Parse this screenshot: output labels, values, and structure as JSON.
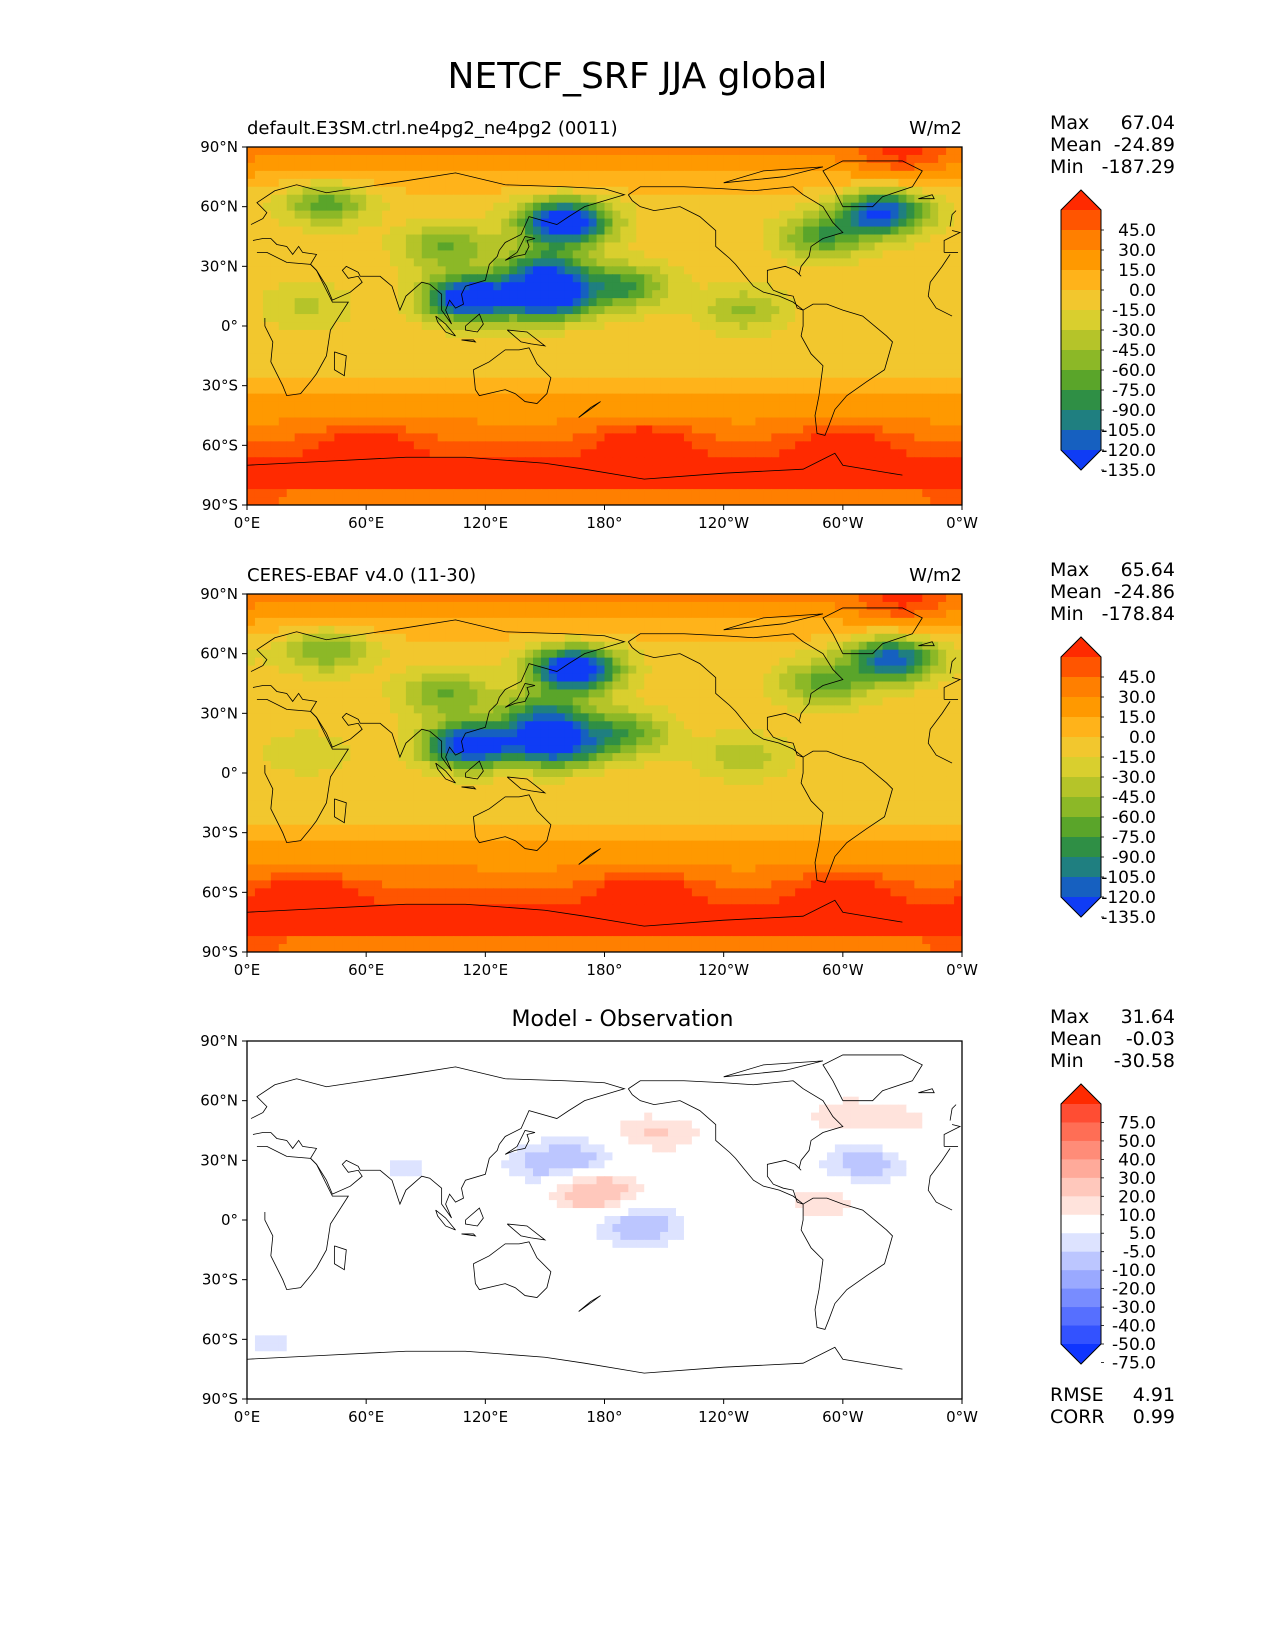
{
  "figure_title": "NETCF_SRF JJA global",
  "chart_data": [
    {
      "type": "contour-map",
      "title": "default.E3SM.ctrl.ne4pg2_ne4pg2 (0011)",
      "units": "W/m2",
      "stats": [
        {
          "label": "Max",
          "value": "67.04"
        },
        {
          "label": "Mean",
          "value": "-24.89"
        },
        {
          "label": "Min",
          "value": "-187.29"
        }
      ],
      "colorbar": {
        "levels": [
          "45.0",
          "30.0",
          "15.0",
          "0.0",
          "-15.0",
          "-30.0",
          "-45.0",
          "-60.0",
          "-75.0",
          "-90.0",
          "-105.0",
          "-120.0",
          "-135.0"
        ],
        "colors": [
          "#ff2a00",
          "#ff5500",
          "#ff7f00",
          "#ff9900",
          "#ffb31a",
          "#f2c72e",
          "#d9cf2e",
          "#b5c429",
          "#8cb827",
          "#5aa52a",
          "#2f8f45",
          "#1f7f80",
          "#1660c0",
          "#0f3cf5"
        ],
        "extend": "both"
      },
      "xaxis": {
        "ticks": [
          "0°E",
          "60°E",
          "120°E",
          "180°",
          "120°W",
          "60°W",
          "0°W"
        ]
      },
      "yaxis": {
        "ticks": [
          "90°N",
          "60°N",
          "30°N",
          "0°",
          "30°S",
          "60°S",
          "90°S"
        ]
      },
      "fields": [
        {
          "lon": 160,
          "lat": 52,
          "value": -150
        },
        {
          "lon": 112,
          "lat": 14,
          "value": -145
        },
        {
          "lon": 152,
          "lat": 14,
          "value": -130
        },
        {
          "lon": 320,
          "lat": 57,
          "value": -120
        },
        {
          "lon": 150,
          "lat": 28,
          "value": -90
        },
        {
          "lon": 190,
          "lat": 20,
          "value": -70
        },
        {
          "lon": 100,
          "lat": 40,
          "value": -55
        },
        {
          "lon": 40,
          "lat": 62,
          "value": -60
        },
        {
          "lon": 290,
          "lat": 45,
          "value": -65
        },
        {
          "lon": 250,
          "lat": 8,
          "value": -40
        },
        {
          "lon": 30,
          "lat": 10,
          "value": -25
        },
        {
          "lon": 80,
          "lat": -40,
          "value": 5
        },
        {
          "lon": 300,
          "lat": -62,
          "value": 45
        },
        {
          "lon": 60,
          "lat": -62,
          "value": 40
        },
        {
          "lon": 200,
          "lat": -60,
          "value": 42
        },
        {
          "lon": 330,
          "lat": 85,
          "value": 35
        },
        {
          "lon": 0,
          "lat": -85,
          "value": 20
        }
      ]
    },
    {
      "type": "contour-map",
      "title": "CERES-EBAF v4.0 (11-30)",
      "units": "W/m2",
      "stats": [
        {
          "label": "Max",
          "value": "65.64"
        },
        {
          "label": "Mean",
          "value": "-24.86"
        },
        {
          "label": "Min",
          "value": "-178.84"
        }
      ],
      "colorbar": {
        "levels": [
          "45.0",
          "30.0",
          "15.0",
          "0.0",
          "-15.0",
          "-30.0",
          "-45.0",
          "-60.0",
          "-75.0",
          "-90.0",
          "-105.0",
          "-120.0",
          "-135.0"
        ],
        "colors": [
          "#ff2a00",
          "#ff5500",
          "#ff7f00",
          "#ff9900",
          "#ffb31a",
          "#f2c72e",
          "#d9cf2e",
          "#b5c429",
          "#8cb827",
          "#5aa52a",
          "#2f8f45",
          "#1f7f80",
          "#1660c0",
          "#0f3cf5"
        ],
        "extend": "both"
      },
      "xaxis": {
        "ticks": [
          "0°E",
          "60°E",
          "120°E",
          "180°",
          "120°W",
          "60°W",
          "0°W"
        ]
      },
      "yaxis": {
        "ticks": [
          "90°N",
          "60°N",
          "30°N",
          "0°",
          "30°S",
          "60°S",
          "90°S"
        ]
      },
      "fields": [
        {
          "lon": 165,
          "lat": 52,
          "value": -145
        },
        {
          "lon": 112,
          "lat": 14,
          "value": -140
        },
        {
          "lon": 155,
          "lat": 14,
          "value": -125
        },
        {
          "lon": 325,
          "lat": 57,
          "value": -110
        },
        {
          "lon": 150,
          "lat": 28,
          "value": -85
        },
        {
          "lon": 190,
          "lat": 20,
          "value": -65
        },
        {
          "lon": 100,
          "lat": 40,
          "value": -55
        },
        {
          "lon": 40,
          "lat": 62,
          "value": -55
        },
        {
          "lon": 290,
          "lat": 45,
          "value": -60
        },
        {
          "lon": 250,
          "lat": 8,
          "value": -35
        },
        {
          "lon": 30,
          "lat": 10,
          "value": -20
        },
        {
          "lon": 80,
          "lat": -40,
          "value": 5
        },
        {
          "lon": 300,
          "lat": -62,
          "value": 45
        },
        {
          "lon": 30,
          "lat": -62,
          "value": 42
        },
        {
          "lon": 200,
          "lat": -60,
          "value": 40
        },
        {
          "lon": 330,
          "lat": 85,
          "value": 35
        },
        {
          "lon": 0,
          "lat": -85,
          "value": 20
        }
      ]
    },
    {
      "type": "contour-map",
      "title": "Model - Observation",
      "units": "",
      "stats": [
        {
          "label": "Max",
          "value": "31.64"
        },
        {
          "label": "Mean",
          "value": "-0.03"
        },
        {
          "label": "Min",
          "value": "-30.58"
        }
      ],
      "metrics": [
        {
          "label": "RMSE",
          "value": "4.91"
        },
        {
          "label": "CORR",
          "value": "0.99"
        }
      ],
      "colorbar": {
        "levels": [
          "75.0",
          "50.0",
          "40.0",
          "30.0",
          "20.0",
          "10.0",
          "5.0",
          "-5.0",
          "-10.0",
          "-20.0",
          "-30.0",
          "-40.0",
          "-50.0",
          "-75.0"
        ],
        "colors": [
          "#ff2a00",
          "#ff4d33",
          "#ff6e55",
          "#ff8c78",
          "#ffaa9a",
          "#ffc8bc",
          "#ffe3dc",
          "#ffffff",
          "#dde3ff",
          "#bcc6ff",
          "#9aa9ff",
          "#788cff",
          "#566fff",
          "#3352ff",
          "#0f35ff"
        ],
        "extend": "both"
      },
      "xaxis": {
        "ticks": [
          "0°E",
          "60°E",
          "120°E",
          "180°",
          "120°W",
          "60°W",
          "0°W"
        ]
      },
      "yaxis": {
        "ticks": [
          "90°N",
          "60°N",
          "30°N",
          "0°",
          "30°S",
          "60°S",
          "90°S"
        ]
      },
      "fields": [
        {
          "lon": 175,
          "lat": 15,
          "value": 20
        },
        {
          "lon": 207,
          "lat": 45,
          "value": 12
        },
        {
          "lon": 290,
          "lat": 10,
          "value": 8
        },
        {
          "lon": 300,
          "lat": 52,
          "value": 8
        },
        {
          "lon": 330,
          "lat": 50,
          "value": 6
        },
        {
          "lon": 150,
          "lat": 28,
          "value": -12
        },
        {
          "lon": 172,
          "lat": 30,
          "value": -10
        },
        {
          "lon": 80,
          "lat": 25,
          "value": -6
        },
        {
          "lon": 198,
          "lat": -3,
          "value": -15
        },
        {
          "lon": 310,
          "lat": 28,
          "value": -14
        },
        {
          "lon": 215,
          "lat": 60,
          "value": -6
        },
        {
          "lon": 12,
          "lat": -62,
          "value": -6
        }
      ]
    }
  ]
}
